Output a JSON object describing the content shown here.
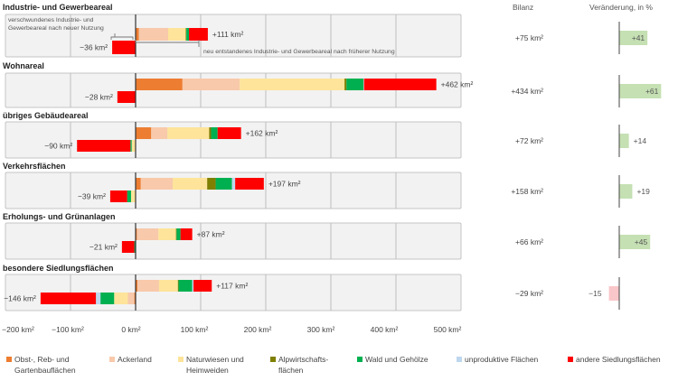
{
  "chart_data": {
    "type": "bar",
    "subtype": "diverging-stacked-horizontal",
    "unit": "km²",
    "xlim": [
      -200,
      500
    ],
    "grid": true,
    "legend_position": "bottom",
    "column_headers": {
      "balance": "Bilanz",
      "change": "Veränderung, in %"
    },
    "annotations": {
      "lost_line1": "verschwundenes Industrie- und",
      "lost_line2": "Gewerbeareal nach neuer Nutzung",
      "new": "neu entstandenes Industrie- und Gewerbeareal nach früherer Nutzung"
    },
    "categories": [
      {
        "name": "Obst-, Reb- und Gartenbauflächen",
        "lines": [
          "Obst-, Reb- und",
          "Gartenbauflächen"
        ],
        "color": "#ed7d31"
      },
      {
        "name": "Ackerland",
        "lines": [
          "Ackerland"
        ],
        "color": "#f8c9ab"
      },
      {
        "name": "Naturwiesen und Heimweiden",
        "lines": [
          "Naturwiesen und",
          "Heimweiden"
        ],
        "color": "#fde49a"
      },
      {
        "name": "Alpwirtschaftsflächen",
        "lines": [
          "Alpwirtschafts-",
          "flächen"
        ],
        "color": "#7f7f00"
      },
      {
        "name": "Wald und Gehölze",
        "lines": [
          "Wald und Gehölze"
        ],
        "color": "#00b050"
      },
      {
        "name": "unproduktive Flächen",
        "lines": [
          "unproduktive Flächen"
        ],
        "color": "#bdd7ee"
      },
      {
        "name": "andere Siedlungsflächen",
        "lines": [
          "andere Siedlungsflächen"
        ],
        "color": "#ff0000"
      }
    ],
    "rows": [
      {
        "title": "Industrie- und Gewerbeareal",
        "gain": [
          5,
          45,
          27,
          1,
          4,
          0,
          29
        ],
        "gain_label": "+111 km²",
        "loss": [
          0,
          0,
          0,
          0,
          0,
          0,
          36
        ],
        "loss_label": "−36 km²",
        "balance_label": "+75 km²",
        "change_pct": 41,
        "change_label": "+41"
      },
      {
        "title": "Wohnareal",
        "gain": [
          72,
          88,
          161,
          3,
          26,
          1,
          111
        ],
        "gain_label": "+462 km²",
        "loss": [
          0,
          0,
          0,
          0,
          0,
          0,
          28
        ],
        "loss_label": "−28 km²",
        "balance_label": "+434 km²",
        "change_pct": 61,
        "change_label": "+61"
      },
      {
        "title": "übriges Gebäudeareal",
        "gain": [
          24,
          25,
          64,
          3,
          10,
          0,
          36
        ],
        "gain_label": "+162 km²",
        "loss": [
          0,
          0,
          6,
          0,
          2,
          0,
          82
        ],
        "loss_label": "−90 km²",
        "balance_label": "+72 km²",
        "change_pct": 14,
        "change_label": "+14"
      },
      {
        "title": "Verkehrsflächen",
        "gain": [
          8,
          49,
          53,
          13,
          25,
          5,
          44
        ],
        "gain_label": "+197 km²",
        "loss": [
          0,
          0,
          7,
          0,
          6,
          0,
          26
        ],
        "loss_label": "−39 km²",
        "balance_label": "+158 km²",
        "change_pct": 19,
        "change_label": "+19"
      },
      {
        "title": "Erholungs- und Grünanlagen",
        "gain": [
          2,
          33,
          27,
          1,
          6,
          0,
          18
        ],
        "gain_label": "+87 km²",
        "loss": [
          0,
          0,
          0,
          0,
          2,
          0,
          19
        ],
        "loss_label": "−21 km²",
        "balance_label": "+66 km²",
        "change_pct": 45,
        "change_label": "+45"
      },
      {
        "title": "besondere Siedlungsflächen",
        "gain": [
          3,
          33,
          29,
          1,
          21,
          2,
          28
        ],
        "gain_label": "+117 km²",
        "loss": [
          2,
          10,
          21,
          0,
          21,
          7,
          85
        ],
        "loss_label": "−146 km²",
        "balance_label": "−29 km²",
        "change_pct": -15,
        "change_label": "−15"
      }
    ],
    "x_ticks": [
      {
        "value": -200,
        "label": "−200 km²"
      },
      {
        "value": -100,
        "label": "−100 km²"
      },
      {
        "value": 0,
        "label": "0 km²"
      },
      {
        "value": 100,
        "label": "100 km²"
      },
      {
        "value": 200,
        "label": "200 km²"
      },
      {
        "value": 300,
        "label": "300 km²"
      },
      {
        "value": 400,
        "label": "400 km²"
      },
      {
        "value": 500,
        "label": "500 km²"
      }
    ],
    "change_colors": {
      "positive": "#c5e0b3",
      "negative": "#f9c6c9"
    }
  }
}
